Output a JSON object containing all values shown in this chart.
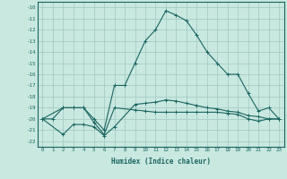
{
  "xlabel": "Humidex (Indice chaleur)",
  "bg_color": "#c8e8e0",
  "grid_color": "#a0c8c0",
  "line_color": "#1a6660",
  "xlim": [
    -0.5,
    23.5
  ],
  "ylim": [
    -22.5,
    -9.5
  ],
  "yticks": [
    -10,
    -11,
    -12,
    -13,
    -14,
    -15,
    -16,
    -17,
    -18,
    -19,
    -20,
    -21,
    -22
  ],
  "xticks": [
    0,
    1,
    2,
    3,
    4,
    5,
    6,
    7,
    8,
    9,
    10,
    11,
    12,
    13,
    14,
    15,
    16,
    17,
    18,
    19,
    20,
    21,
    22,
    23
  ],
  "series": [
    {
      "x": [
        0,
        1,
        2,
        3,
        4,
        5,
        6,
        7,
        8,
        9,
        10,
        11,
        12,
        13,
        14,
        15,
        16,
        17,
        18,
        19,
        20,
        21,
        22,
        23
      ],
      "y": [
        -20,
        -20,
        -19,
        -19,
        -19,
        -20,
        -21,
        -17,
        -17,
        -15,
        -13,
        -12,
        -10.3,
        -10.7,
        -11.2,
        -12.5,
        -14,
        -15,
        -16,
        -16,
        -17.7,
        -19.3,
        -19,
        -20
      ]
    },
    {
      "x": [
        0,
        2,
        3,
        4,
        5,
        6,
        7,
        9,
        10,
        11,
        12,
        13,
        14,
        15,
        16,
        17,
        18,
        19,
        20,
        21,
        22,
        23
      ],
      "y": [
        -20,
        -19,
        -19,
        -19,
        -20.3,
        -21.4,
        -19.0,
        -19.2,
        -19.3,
        -19.4,
        -19.4,
        -19.4,
        -19.4,
        -19.4,
        -19.4,
        -19.4,
        -19.5,
        -19.6,
        -20.0,
        -20.2,
        -20.0,
        -20.0
      ]
    },
    {
      "x": [
        0,
        2,
        3,
        4,
        5,
        6,
        7,
        9,
        10,
        11,
        12,
        13,
        14,
        15,
        16,
        17,
        18,
        19,
        20,
        21,
        22,
        23
      ],
      "y": [
        -20,
        -21.4,
        -20.5,
        -20.5,
        -20.7,
        -21.5,
        -20.7,
        -18.7,
        -18.6,
        -18.5,
        -18.3,
        -18.4,
        -18.6,
        -18.8,
        -19.0,
        -19.1,
        -19.3,
        -19.4,
        -19.7,
        -19.8,
        -20.0,
        -20.0
      ]
    }
  ]
}
